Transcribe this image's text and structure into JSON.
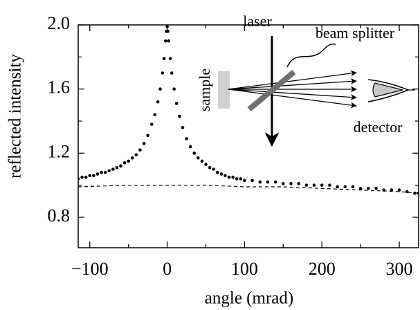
{
  "chart_data": {
    "type": "scatter",
    "xlabel": "angle (mrad)",
    "ylabel": "reflected intensity",
    "xlim": [
      -115,
      325
    ],
    "ylim": [
      0.61,
      2.0
    ],
    "xticks": [
      {
        "value": -100,
        "label": "−100"
      },
      0,
      100,
      200,
      300
    ],
    "yticks": [
      0.8,
      1.2,
      1.6,
      {
        "value": 2,
        "label": "2.0"
      }
    ],
    "xminorticks": [
      -50,
      50,
      150,
      250
    ],
    "yminorticks": [
      1.0,
      1.4,
      1.8
    ],
    "series": [
      {
        "style": "dots",
        "color": "#000000",
        "x": [
          -115,
          -110,
          -105,
          -100,
          -95,
          -90,
          -85,
          -80,
          -75,
          -70,
          -65,
          -60,
          -55,
          -50,
          -45,
          -40,
          -35,
          -30,
          -25,
          -20,
          -16,
          -12,
          -9,
          -6,
          -4,
          -2,
          -1,
          0,
          1,
          2,
          4,
          6,
          9,
          12,
          16,
          20,
          25,
          30,
          35,
          40,
          45,
          50,
          55,
          60,
          65,
          70,
          75,
          80,
          85,
          90,
          95,
          100,
          110,
          120,
          130,
          140,
          150,
          160,
          170,
          180,
          190,
          200,
          210,
          220,
          230,
          240,
          250,
          260,
          270,
          280,
          290,
          300,
          310,
          320,
          325
        ],
        "values": [
          1.04,
          1.05,
          1.05,
          1.06,
          1.06,
          1.07,
          1.08,
          1.08,
          1.09,
          1.1,
          1.11,
          1.12,
          1.14,
          1.15,
          1.17,
          1.19,
          1.22,
          1.26,
          1.31,
          1.38,
          1.44,
          1.52,
          1.6,
          1.7,
          1.79,
          1.9,
          1.96,
          1.99,
          1.96,
          1.9,
          1.79,
          1.7,
          1.6,
          1.51,
          1.43,
          1.36,
          1.29,
          1.24,
          1.2,
          1.17,
          1.15,
          1.13,
          1.11,
          1.1,
          1.08,
          1.07,
          1.06,
          1.05,
          1.05,
          1.04,
          1.04,
          1.03,
          1.03,
          1.02,
          1.02,
          1.02,
          1.01,
          1.01,
          1.01,
          1.0,
          1.0,
          1.0,
          1.0,
          0.99,
          0.99,
          0.99,
          0.98,
          0.98,
          0.98,
          0.97,
          0.97,
          0.97,
          0.96,
          0.95,
          0.95
        ]
      },
      {
        "style": "dashed",
        "color": "#000000",
        "x": [
          -115,
          -50,
          0,
          50,
          100,
          150,
          200,
          250,
          300,
          325
        ],
        "values": [
          0.99,
          1.0,
          1.0,
          1.0,
          0.99,
          0.99,
          0.98,
          0.97,
          0.96,
          0.95
        ]
      }
    ],
    "annotations": [
      "laser",
      "beam splitter",
      "sample",
      "detector"
    ]
  }
}
